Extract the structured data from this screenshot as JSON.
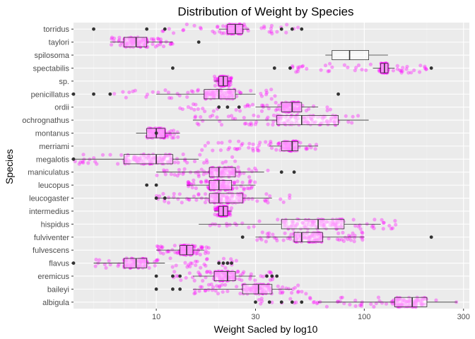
{
  "chart_data": {
    "type": "boxplot-jitter",
    "title": "Distribution of Weight by Species",
    "xlabel": "Weight Sacled by log10",
    "ylabel": "Species",
    "x_scale": "log10",
    "xlim": [
      4,
      320
    ],
    "x_ticks": [
      10,
      30,
      100,
      300
    ],
    "x_tick_labels": [
      "10",
      "30",
      "100",
      "300"
    ],
    "grid": true,
    "jitter_color": "#ff00ff",
    "outlier_color": "#333333",
    "panel_color": "#ebebeb",
    "species": [
      {
        "name": "albigula",
        "min": 60,
        "q1": 140,
        "median": 170,
        "q3": 200,
        "max": 280,
        "outliers": [
          30,
          35,
          40,
          45,
          50
        ],
        "jitter": [
          30,
          280
        ]
      },
      {
        "name": "baileyi",
        "min": 15,
        "q1": 26,
        "median": 31,
        "q3": 36,
        "max": 45,
        "outliers": [
          10,
          12,
          13
        ],
        "jitter": [
          15,
          55
        ]
      },
      {
        "name": "eremicus",
        "min": 15,
        "q1": 19,
        "median": 22,
        "q3": 24,
        "max": 30,
        "outliers": [
          10,
          12,
          13,
          34,
          36,
          38
        ],
        "jitter": [
          12,
          38
        ]
      },
      {
        "name": "flavus",
        "min": 5,
        "q1": 7,
        "median": 8,
        "q3": 9,
        "max": 11,
        "outliers": [
          4,
          20,
          21,
          22,
          23
        ],
        "jitter": [
          5,
          25
        ]
      },
      {
        "name": "fulvescens",
        "min": 10,
        "q1": 13,
        "median": 14,
        "q3": 15,
        "max": 17,
        "outliers": [],
        "jitter": [
          10,
          18
        ]
      },
      {
        "name": "fulviventer",
        "min": 30,
        "q1": 46,
        "median": 50,
        "q3": 63,
        "max": 100,
        "outliers": [
          26,
          210
        ],
        "jitter": [
          30,
          100
        ]
      },
      {
        "name": "hispidus",
        "min": 16,
        "q1": 40,
        "median": 60,
        "q3": 80,
        "max": 120,
        "outliers": [],
        "jitter": [
          18,
          150
        ]
      },
      {
        "name": "intermedius",
        "min": 19,
        "q1": 20,
        "median": 21,
        "q3": 22,
        "max": 23,
        "outliers": [],
        "jitter": [
          19,
          23
        ]
      },
      {
        "name": "leucogaster",
        "min": 10,
        "q1": 18,
        "median": 20,
        "q3": 26,
        "max": 36,
        "outliers": [
          10,
          11
        ],
        "jitter": [
          10,
          44
        ]
      },
      {
        "name": "leucopus",
        "min": 14,
        "q1": 18,
        "median": 20,
        "q3": 23,
        "max": 30,
        "outliers": [
          9,
          10
        ],
        "jitter": [
          14,
          30
        ]
      },
      {
        "name": "maniculatus",
        "min": 10,
        "q1": 18,
        "median": 20,
        "q3": 24,
        "max": 33,
        "outliers": [
          40,
          46
        ],
        "jitter": [
          10,
          35
        ]
      },
      {
        "name": "megalotis",
        "min": 4,
        "q1": 7,
        "median": 10,
        "q3": 12,
        "max": 16,
        "outliers": [
          4
        ],
        "jitter": [
          4,
          26
        ]
      },
      {
        "name": "merriami",
        "min": 35,
        "q1": 40,
        "median": 45,
        "q3": 48,
        "max": 60,
        "outliers": [],
        "jitter": [
          16,
          60
        ]
      },
      {
        "name": "montanus",
        "min": 8,
        "q1": 9,
        "median": 10,
        "q3": 11,
        "max": 13,
        "outliers": [
          10
        ],
        "jitter": [
          9,
          13
        ]
      },
      {
        "name": "ochrognathus",
        "min": 15,
        "q1": 38,
        "median": 50,
        "q3": 75,
        "max": 105,
        "outliers": [],
        "jitter": [
          15,
          95
        ]
      },
      {
        "name": "ordii",
        "min": 30,
        "q1": 40,
        "median": 45,
        "q3": 50,
        "max": 60,
        "outliers": [
          20,
          22,
          25
        ],
        "jitter": [
          13,
          70
        ]
      },
      {
        "name": "penicillatus",
        "min": 10,
        "q1": 17,
        "median": 20,
        "q3": 24,
        "max": 30,
        "outliers": [
          4,
          5,
          6,
          75
        ],
        "jitter": [
          6,
          38
        ]
      },
      {
        "name": "sp.",
        "min": 19,
        "q1": 20,
        "median": 21,
        "q3": 22,
        "max": 23,
        "outliers": [],
        "jitter": [
          19,
          23
        ]
      },
      {
        "name": "spectabilis",
        "min": 110,
        "q1": 120,
        "median": 125,
        "q3": 130,
        "max": 140,
        "outliers": [
          12,
          37,
          44,
          210
        ],
        "jitter": [
          45,
          200
        ]
      },
      {
        "name": "spilosoma",
        "min": 65,
        "q1": 70,
        "median": 85,
        "q3": 105,
        "max": 130,
        "outliers": [],
        "jitter": []
      },
      {
        "name": "taylori",
        "min": 6,
        "q1": 7,
        "median": 8,
        "q3": 9,
        "max": 12,
        "outliers": [
          16
        ],
        "jitter": [
          6,
          12
        ]
      },
      {
        "name": "torridus",
        "min": 20,
        "q1": 22,
        "median": 24,
        "q3": 26,
        "max": 28,
        "outliers": [
          5,
          9,
          11,
          40,
          45,
          50
        ],
        "jitter": [
          10,
          50
        ]
      }
    ]
  }
}
